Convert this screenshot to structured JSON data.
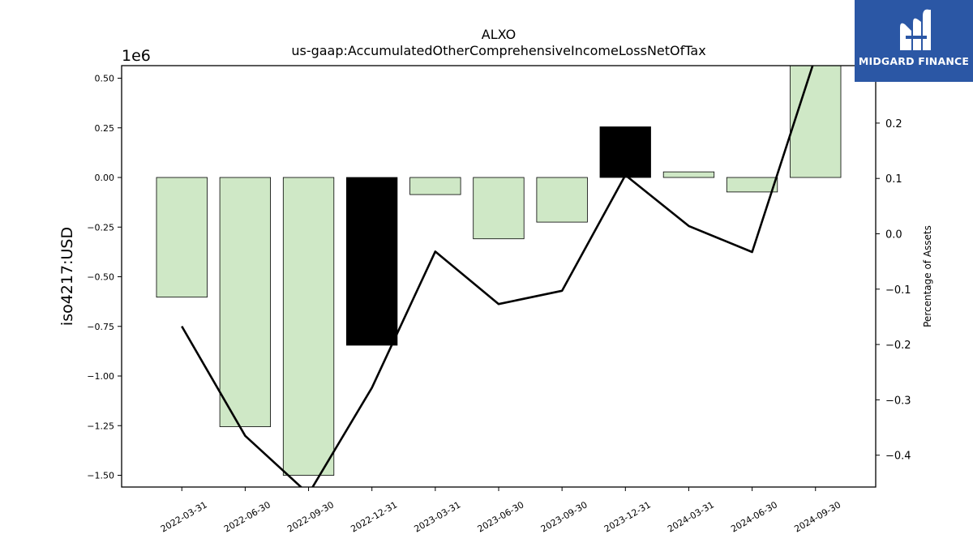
{
  "chart_data": {
    "type": "bar",
    "title": "ALXO",
    "subtitle": "us-gaap:AccumulatedOtherComprehensiveIncomeLossNetOfTax",
    "ylabel": "iso4217:USD",
    "y2label": "Percentage of Assets",
    "y_multiplier_label": "1e6",
    "categories": [
      "2022-03-31",
      "2022-06-30",
      "2022-09-30",
      "2022-12-31",
      "2023-03-31",
      "2023-06-30",
      "2023-09-30",
      "2023-12-31",
      "2024-03-31",
      "2024-06-30",
      "2024-09-30"
    ],
    "bar_values": [
      -603000,
      -1255000,
      -1500000,
      -845000,
      -86000,
      -309000,
      -225000,
      255000,
      28000,
      -73000,
      565000
    ],
    "bar_colors": [
      "#cfe8c6",
      "#cfe8c6",
      "#cfe8c6",
      "#000000",
      "#cfe8c6",
      "#cfe8c6",
      "#cfe8c6",
      "#000000",
      "#cfe8c6",
      "#cfe8c6",
      "#cfe8c6"
    ],
    "line_values": [
      -0.167,
      -0.365,
      -0.47,
      -0.278,
      -0.032,
      -0.127,
      -0.103,
      0.106,
      0.014,
      -0.033,
      0.32
    ],
    "ylim": [
      -1560000.0,
      560000.0
    ],
    "y2lim": [
      -0.46,
      0.31
    ],
    "yticks": [
      0.5,
      0.25,
      0.0,
      -0.25,
      -0.5,
      -0.75,
      -1.0,
      -1.25,
      -1.5
    ],
    "yticklabels": [
      "0.50",
      "0.25",
      "0.00",
      "−0.25",
      "−0.50",
      "−0.75",
      "−1.00",
      "−1.25",
      "−1.50"
    ],
    "y2ticks": [
      0.2,
      0.1,
      0.0,
      -0.1,
      -0.2,
      -0.3,
      -0.4
    ],
    "y2ticklabels": [
      "0.2",
      "0.1",
      "0.0",
      "−0.1",
      "−0.2",
      "−0.3",
      "−0.4"
    ],
    "grid": false,
    "legend": "none"
  },
  "logo": {
    "text": "MIDGARD FINANCE",
    "background": "#2b57a5",
    "icon": "midgard-m-icon"
  }
}
